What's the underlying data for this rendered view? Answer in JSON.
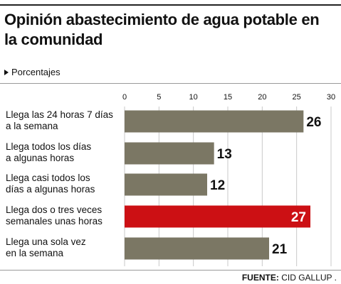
{
  "header": {
    "title": "Opinión abastecimiento de agua potable en la comunidad",
    "subtitle": "Porcentajes"
  },
  "footer": {
    "source_label": "FUENTE:",
    "source_value": "CID GALLUP ."
  },
  "colors": {
    "bar": "#7b7764",
    "highlight": "#cc1014",
    "grid": "#c8c8c8",
    "text": "#111111"
  },
  "chart_data": {
    "type": "bar",
    "orientation": "horizontal",
    "title": "Opinión abastecimiento de agua potable en la comunidad",
    "subtitle": "Porcentajes",
    "categories": [
      [
        "Llega las 24 horas 7 días",
        "a la semana"
      ],
      [
        "Llega todos los días",
        "a algunas horas"
      ],
      [
        "Llega casi todos los",
        "días a algunas horas"
      ],
      [
        "Llega dos o tres veces",
        "semanales unas horas"
      ],
      [
        "Llega una sola vez",
        "en la semana"
      ]
    ],
    "values": [
      26,
      13,
      12,
      27,
      21
    ],
    "highlight_index": 3,
    "xlim": [
      0,
      30
    ],
    "xticks": [
      0,
      5,
      10,
      15,
      20,
      25,
      30
    ],
    "grid": true,
    "xaxis_position": "top",
    "source": "FUENTE: CID GALLUP ."
  }
}
